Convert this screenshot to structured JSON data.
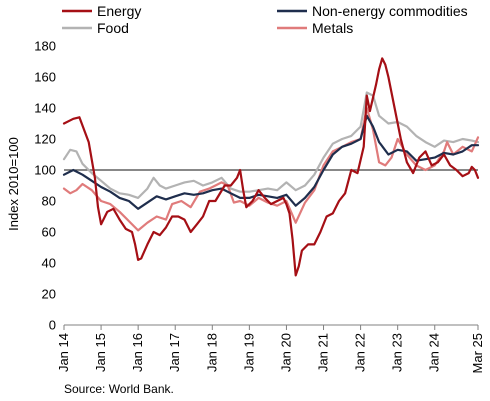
{
  "chart_data": {
    "type": "line",
    "title": "",
    "ylabel": "Index 2010=100",
    "xlabel": "",
    "ylim": [
      0,
      180
    ],
    "y_ticks": [
      0,
      20,
      40,
      60,
      80,
      100,
      120,
      140,
      160,
      180
    ],
    "x_range": [
      "2014-01",
      "2025-03"
    ],
    "x_ticks": [
      "Jan 14",
      "Jan 15",
      "Jan 16",
      "Jan 17",
      "Jan 18",
      "Jan 19",
      "Jan 20",
      "Jan 21",
      "Jan 22",
      "Jan 23",
      "Jan 24",
      "Mar 25"
    ],
    "reference_line": 100,
    "legend_position": "top",
    "grid": false,
    "source": "Source: World Bank.",
    "series": [
      {
        "name": "Energy",
        "color": "#a50f15",
        "values": [
          [
            "2014-01",
            130
          ],
          [
            "2014-04",
            133
          ],
          [
            "2014-06",
            134
          ],
          [
            "2014-09",
            118
          ],
          [
            "2014-11",
            95
          ],
          [
            "2014-12",
            76
          ],
          [
            "2015-01",
            65
          ],
          [
            "2015-03",
            73
          ],
          [
            "2015-05",
            75
          ],
          [
            "2015-07",
            68
          ],
          [
            "2015-09",
            62
          ],
          [
            "2015-11",
            60
          ],
          [
            "2015-12",
            52
          ],
          [
            "2016-01",
            42
          ],
          [
            "2016-02",
            43
          ],
          [
            "2016-04",
            52
          ],
          [
            "2016-06",
            60
          ],
          [
            "2016-08",
            58
          ],
          [
            "2016-10",
            63
          ],
          [
            "2016-12",
            70
          ],
          [
            "2017-02",
            70
          ],
          [
            "2017-04",
            68
          ],
          [
            "2017-06",
            60
          ],
          [
            "2017-08",
            65
          ],
          [
            "2017-10",
            70
          ],
          [
            "2017-12",
            80
          ],
          [
            "2018-02",
            80
          ],
          [
            "2018-05",
            90
          ],
          [
            "2018-07",
            90
          ],
          [
            "2018-09",
            95
          ],
          [
            "2018-10",
            100
          ],
          [
            "2018-11",
            87
          ],
          [
            "2018-12",
            76
          ],
          [
            "2019-02",
            80
          ],
          [
            "2019-04",
            87
          ],
          [
            "2019-06",
            82
          ],
          [
            "2019-08",
            78
          ],
          [
            "2019-10",
            80
          ],
          [
            "2019-12",
            82
          ],
          [
            "2020-01",
            78
          ],
          [
            "2020-02",
            72
          ],
          [
            "2020-03",
            55
          ],
          [
            "2020-04",
            32
          ],
          [
            "2020-05",
            38
          ],
          [
            "2020-06",
            48
          ],
          [
            "2020-08",
            52
          ],
          [
            "2020-10",
            52
          ],
          [
            "2020-12",
            60
          ],
          [
            "2021-02",
            70
          ],
          [
            "2021-04",
            72
          ],
          [
            "2021-06",
            80
          ],
          [
            "2021-08",
            85
          ],
          [
            "2021-10",
            100
          ],
          [
            "2021-12",
            98
          ],
          [
            "2022-02",
            115
          ],
          [
            "2022-03",
            148
          ],
          [
            "2022-04",
            138
          ],
          [
            "2022-06",
            155
          ],
          [
            "2022-07",
            165
          ],
          [
            "2022-08",
            172
          ],
          [
            "2022-09",
            168
          ],
          [
            "2022-10",
            160
          ],
          [
            "2022-11",
            150
          ],
          [
            "2022-12",
            140
          ],
          [
            "2023-02",
            120
          ],
          [
            "2023-04",
            105
          ],
          [
            "2023-06",
            98
          ],
          [
            "2023-08",
            108
          ],
          [
            "2023-10",
            112
          ],
          [
            "2023-12",
            103
          ],
          [
            "2024-02",
            105
          ],
          [
            "2024-04",
            110
          ],
          [
            "2024-06",
            103
          ],
          [
            "2024-08",
            100
          ],
          [
            "2024-10",
            96
          ],
          [
            "2024-12",
            98
          ],
          [
            "2025-01",
            102
          ],
          [
            "2025-02",
            100
          ],
          [
            "2025-03",
            95
          ]
        ]
      },
      {
        "name": "Non-energy commodities",
        "color": "#1f2e4d",
        "values": [
          [
            "2014-01",
            97
          ],
          [
            "2014-04",
            100
          ],
          [
            "2014-07",
            97
          ],
          [
            "2014-10",
            93
          ],
          [
            "2015-01",
            89
          ],
          [
            "2015-04",
            86
          ],
          [
            "2015-07",
            82
          ],
          [
            "2015-10",
            80
          ],
          [
            "2016-01",
            75
          ],
          [
            "2016-04",
            79
          ],
          [
            "2016-07",
            83
          ],
          [
            "2016-10",
            81
          ],
          [
            "2017-01",
            83
          ],
          [
            "2017-04",
            85
          ],
          [
            "2017-07",
            84
          ],
          [
            "2017-10",
            85
          ],
          [
            "2018-01",
            87
          ],
          [
            "2018-04",
            88
          ],
          [
            "2018-07",
            85
          ],
          [
            "2018-10",
            82
          ],
          [
            "2019-01",
            82
          ],
          [
            "2019-04",
            84
          ],
          [
            "2019-07",
            83
          ],
          [
            "2019-10",
            82
          ],
          [
            "2020-01",
            84
          ],
          [
            "2020-04",
            77
          ],
          [
            "2020-07",
            82
          ],
          [
            "2020-10",
            89
          ],
          [
            "2021-01",
            100
          ],
          [
            "2021-04",
            110
          ],
          [
            "2021-07",
            115
          ],
          [
            "2021-10",
            117
          ],
          [
            "2022-01",
            120
          ],
          [
            "2022-03",
            135
          ],
          [
            "2022-05",
            128
          ],
          [
            "2022-07",
            118
          ],
          [
            "2022-10",
            110
          ],
          [
            "2023-01",
            113
          ],
          [
            "2023-04",
            112
          ],
          [
            "2023-07",
            106
          ],
          [
            "2023-10",
            107
          ],
          [
            "2024-01",
            108
          ],
          [
            "2024-04",
            111
          ],
          [
            "2024-07",
            110
          ],
          [
            "2024-10",
            112
          ],
          [
            "2025-01",
            116
          ],
          [
            "2025-03",
            116
          ]
        ]
      },
      {
        "name": "Food",
        "color": "#b3b3b3",
        "values": [
          [
            "2014-01",
            107
          ],
          [
            "2014-03",
            113
          ],
          [
            "2014-05",
            112
          ],
          [
            "2014-07",
            104
          ],
          [
            "2014-10",
            98
          ],
          [
            "2015-01",
            93
          ],
          [
            "2015-04",
            88
          ],
          [
            "2015-07",
            85
          ],
          [
            "2015-10",
            84
          ],
          [
            "2016-01",
            82
          ],
          [
            "2016-04",
            88
          ],
          [
            "2016-06",
            95
          ],
          [
            "2016-08",
            90
          ],
          [
            "2016-10",
            88
          ],
          [
            "2017-01",
            90
          ],
          [
            "2017-04",
            92
          ],
          [
            "2017-07",
            93
          ],
          [
            "2017-10",
            90
          ],
          [
            "2018-01",
            92
          ],
          [
            "2018-04",
            95
          ],
          [
            "2018-07",
            88
          ],
          [
            "2018-10",
            86
          ],
          [
            "2019-01",
            86
          ],
          [
            "2019-04",
            87
          ],
          [
            "2019-07",
            88
          ],
          [
            "2019-10",
            87
          ],
          [
            "2020-01",
            92
          ],
          [
            "2020-04",
            87
          ],
          [
            "2020-07",
            90
          ],
          [
            "2020-10",
            97
          ],
          [
            "2021-01",
            108
          ],
          [
            "2021-04",
            117
          ],
          [
            "2021-07",
            120
          ],
          [
            "2021-10",
            122
          ],
          [
            "2022-01",
            128
          ],
          [
            "2022-03",
            150
          ],
          [
            "2022-05",
            148
          ],
          [
            "2022-07",
            135
          ],
          [
            "2022-10",
            130
          ],
          [
            "2023-01",
            131
          ],
          [
            "2023-04",
            128
          ],
          [
            "2023-07",
            122
          ],
          [
            "2023-10",
            118
          ],
          [
            "2024-01",
            115
          ],
          [
            "2024-04",
            119
          ],
          [
            "2024-07",
            118
          ],
          [
            "2024-10",
            120
          ],
          [
            "2025-01",
            119
          ],
          [
            "2025-03",
            118
          ]
        ]
      },
      {
        "name": "Metals",
        "color": "#e07b7b",
        "values": [
          [
            "2014-01",
            88
          ],
          [
            "2014-03",
            85
          ],
          [
            "2014-05",
            87
          ],
          [
            "2014-07",
            91
          ],
          [
            "2014-10",
            87
          ],
          [
            "2015-01",
            80
          ],
          [
            "2015-04",
            78
          ],
          [
            "2015-07",
            73
          ],
          [
            "2015-10",
            67
          ],
          [
            "2016-01",
            61
          ],
          [
            "2016-04",
            66
          ],
          [
            "2016-07",
            70
          ],
          [
            "2016-10",
            68
          ],
          [
            "2016-12",
            78
          ],
          [
            "2017-03",
            80
          ],
          [
            "2017-06",
            76
          ],
          [
            "2017-09",
            86
          ],
          [
            "2017-12",
            88
          ],
          [
            "2018-02",
            90
          ],
          [
            "2018-04",
            92
          ],
          [
            "2018-06",
            90
          ],
          [
            "2018-08",
            79
          ],
          [
            "2018-10",
            80
          ],
          [
            "2019-01",
            77
          ],
          [
            "2019-04",
            82
          ],
          [
            "2019-07",
            79
          ],
          [
            "2019-10",
            77
          ],
          [
            "2020-01",
            80
          ],
          [
            "2020-04",
            66
          ],
          [
            "2020-07",
            79
          ],
          [
            "2020-10",
            87
          ],
          [
            "2021-01",
            103
          ],
          [
            "2021-04",
            112
          ],
          [
            "2021-07",
            115
          ],
          [
            "2021-10",
            118
          ],
          [
            "2022-01",
            120
          ],
          [
            "2022-03",
            140
          ],
          [
            "2022-05",
            126
          ],
          [
            "2022-07",
            105
          ],
          [
            "2022-09",
            103
          ],
          [
            "2022-11",
            108
          ],
          [
            "2023-01",
            120
          ],
          [
            "2023-04",
            110
          ],
          [
            "2023-07",
            103
          ],
          [
            "2023-10",
            100
          ],
          [
            "2024-01",
            103
          ],
          [
            "2024-04",
            112
          ],
          [
            "2024-05",
            118
          ],
          [
            "2024-07",
            110
          ],
          [
            "2024-10",
            115
          ],
          [
            "2025-01",
            112
          ],
          [
            "2025-03",
            121
          ]
        ]
      }
    ]
  }
}
